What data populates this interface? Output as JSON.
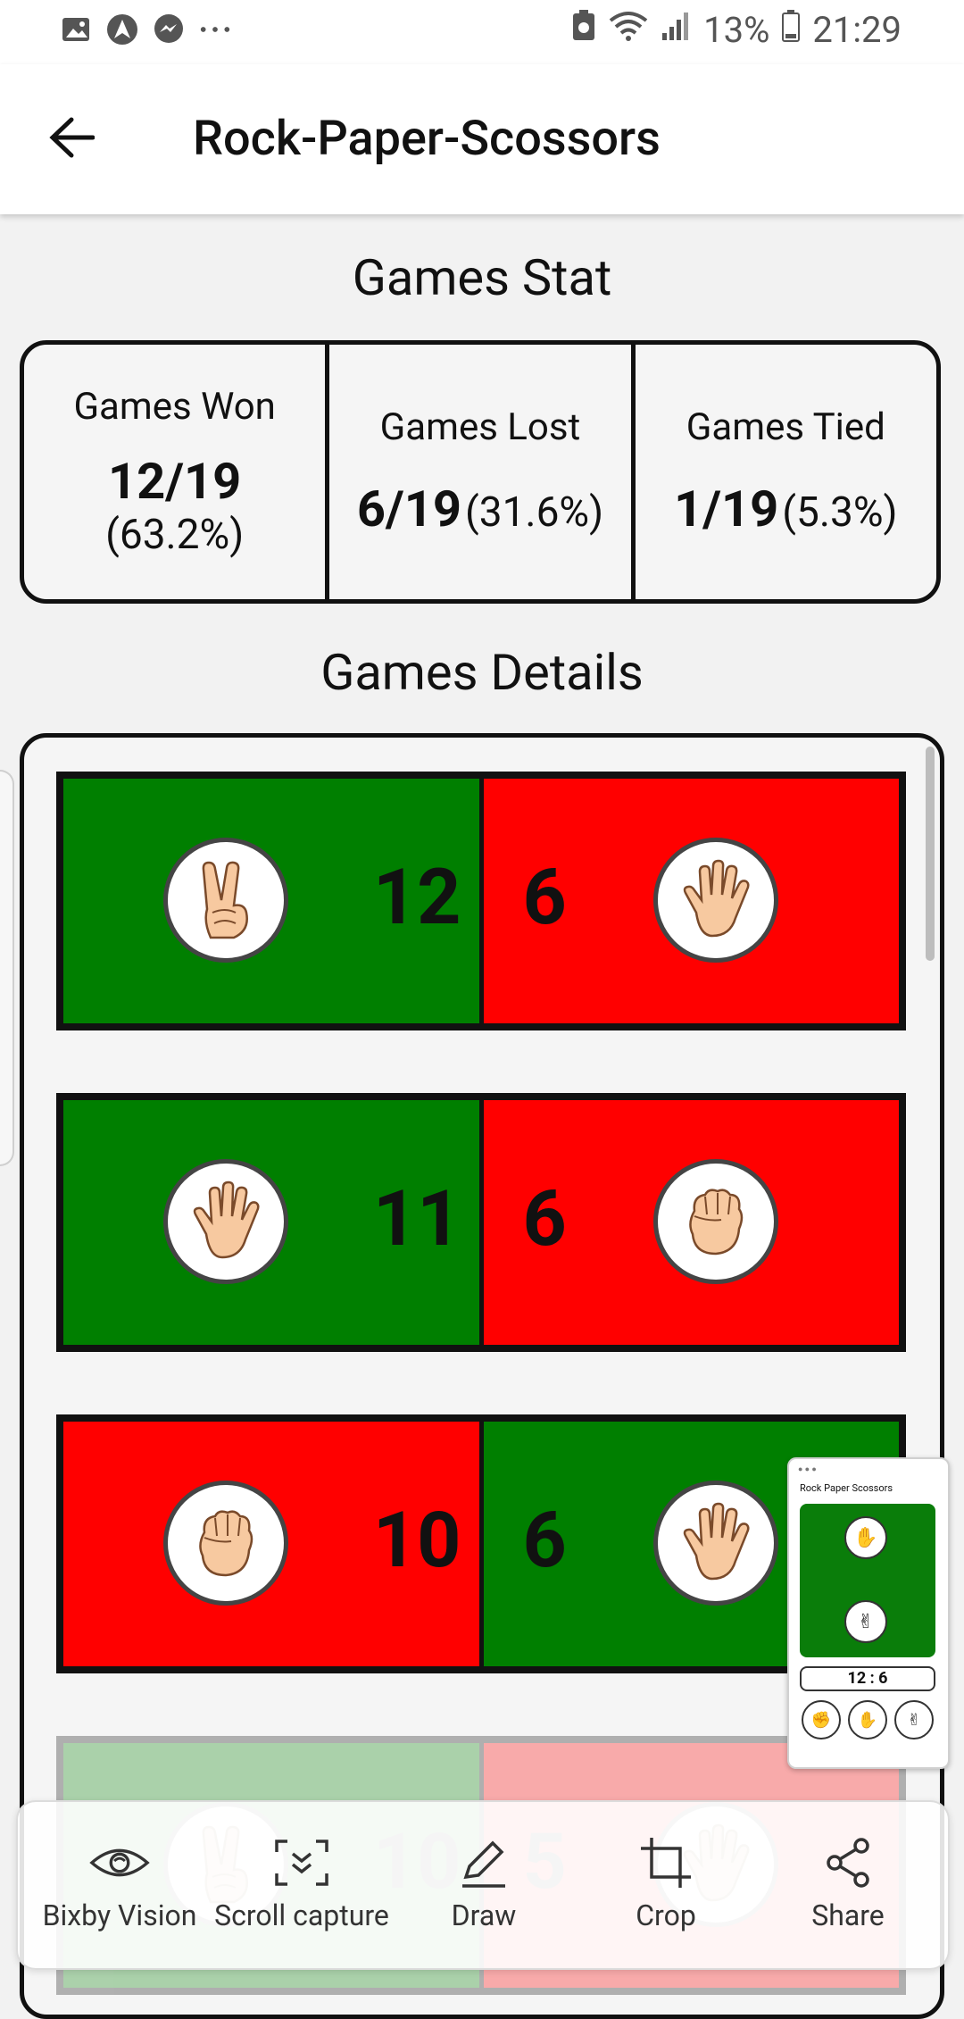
{
  "status_bar": {
    "left_icons": [
      "image-icon",
      "arrow-a-icon",
      "messenger-icon",
      "more-dots-icon"
    ],
    "battery": "13%",
    "time": "21:29"
  },
  "app_bar": {
    "title": "Rock-Paper-Scossors"
  },
  "stats": {
    "heading": "Games Stat",
    "won": {
      "label": "Games Won",
      "value": "12/19",
      "percent": "(63.2%)"
    },
    "lost": {
      "label": "Games Lost",
      "value": "6/19",
      "percent": "(31.6%)"
    },
    "tied": {
      "label": "Games Tied",
      "value": "1/19",
      "percent": "(5.3%)"
    }
  },
  "details": {
    "heading": "Games Details",
    "rows": [
      {
        "left_hand": "scissors",
        "left_color": "green",
        "left_score": "12",
        "right_score": "6",
        "right_hand": "paper",
        "right_color": "red"
      },
      {
        "left_hand": "paper",
        "left_color": "green",
        "left_score": "11",
        "right_score": "6",
        "right_hand": "rock",
        "right_color": "red"
      },
      {
        "left_hand": "rock",
        "left_color": "red",
        "left_score": "10",
        "right_score": "6",
        "right_hand": "paper",
        "right_color": "green"
      },
      {
        "left_hand": "scissors",
        "left_color": "green",
        "left_score": "10",
        "right_score": "5",
        "right_hand": "paper",
        "right_color": "red"
      }
    ]
  },
  "preview": {
    "title": "Rock Paper Scossors",
    "score": "12 : 6"
  },
  "toolbar": {
    "bixby": "Bixby Vision",
    "scroll": "Scroll capture",
    "draw": "Draw",
    "crop": "Crop",
    "share": "Share"
  },
  "colors": {
    "win_green": "#007f00",
    "loss_red": "#ff0000",
    "border": "#111111"
  }
}
